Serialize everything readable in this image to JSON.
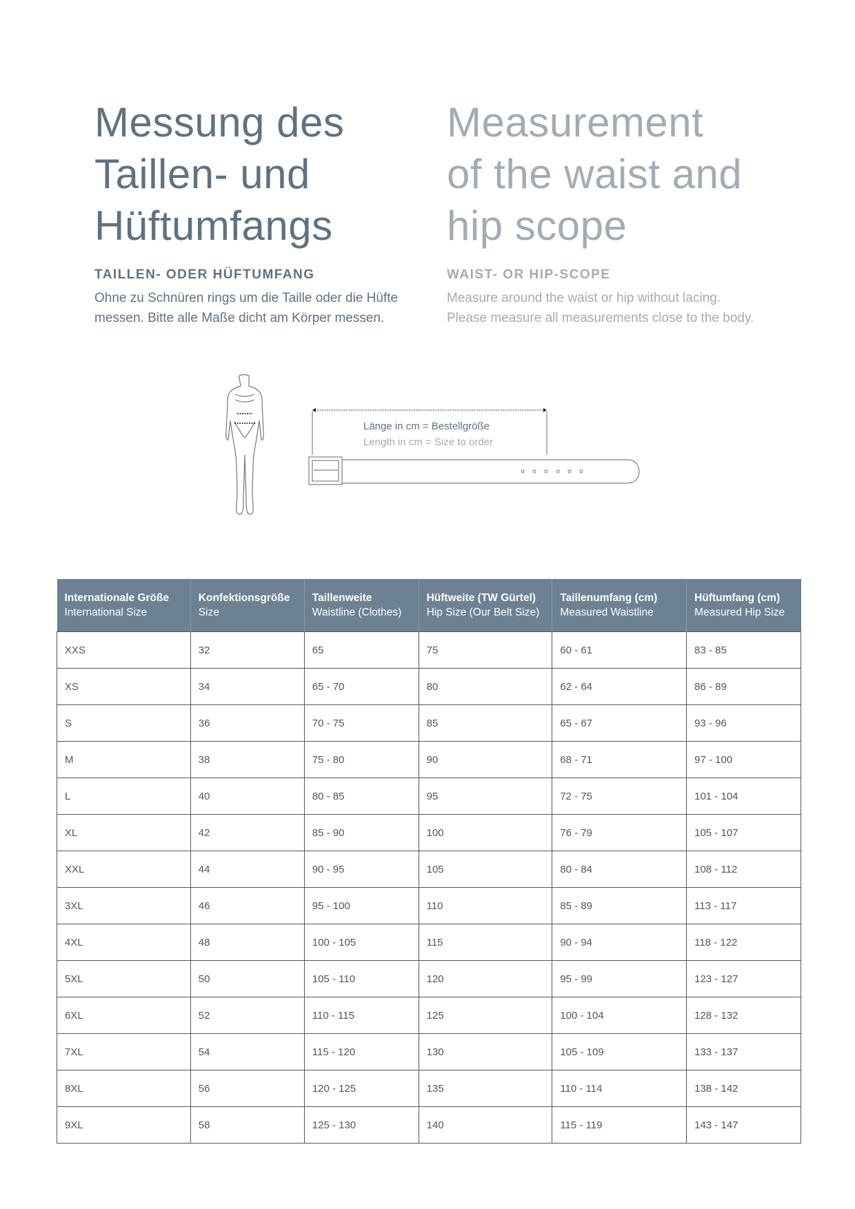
{
  "heading_de": {
    "lines": [
      "Messung des",
      "Taillen- und",
      "Hüftumfangs"
    ]
  },
  "heading_en": {
    "lines": [
      "Measurement",
      "of the waist and",
      "hip scope"
    ]
  },
  "subheading_de": "TAILLEN- ODER HÜFTUMFANG",
  "subheading_en": "WAIST- OR HIP-SCOPE",
  "body_de": [
    "Ohne zu Schnüren rings um die Taille oder die Hüfte",
    "messen. Bitte alle Maße dicht am Körper messen."
  ],
  "body_en": [
    "Measure around the waist or hip without lacing.",
    "Please measure all measurements close to the body."
  ],
  "belt_label_de": "Länge in cm = Bestellgröße",
  "belt_label_en": "Length in cm = Size to order",
  "colors": {
    "header_bg": "#6c8192",
    "heading_de": "#5f7284",
    "heading_en": "#a3acb4"
  },
  "table": {
    "headers": [
      {
        "de": "Internationale Größe",
        "en": "International Size"
      },
      {
        "de": "Konfektionsgröße",
        "en": "Size"
      },
      {
        "de": "Taillenweite",
        "en": "Waistline (Clothes)"
      },
      {
        "de": "Hüftweite (TW Gürtel)",
        "en": "Hip Size (Our Belt Size)"
      },
      {
        "de": "Taillenumfang (cm)",
        "en": "Measured Waistline"
      },
      {
        "de": "Hüftumfang (cm)",
        "en": "Measured Hip Size"
      }
    ],
    "rows": [
      [
        "XXS",
        "32",
        "65",
        "75",
        "60 - 61",
        "83 - 85"
      ],
      [
        "XS",
        "34",
        "65 - 70",
        "80",
        "62 - 64",
        "86 - 89"
      ],
      [
        "S",
        "36",
        "70 - 75",
        "85",
        "65 - 67",
        "93 - 96"
      ],
      [
        "M",
        "38",
        "75 - 80",
        "90",
        "68 - 71",
        "97 - 100"
      ],
      [
        "L",
        "40",
        "80 - 85",
        "95",
        "72 - 75",
        "101 - 104"
      ],
      [
        "XL",
        "42",
        "85 - 90",
        "100",
        "76 - 79",
        "105 - 107"
      ],
      [
        "XXL",
        "44",
        "90 - 95",
        "105",
        "80 - 84",
        "108 - 112"
      ],
      [
        "3XL",
        "46",
        "95 - 100",
        "110",
        "85 - 89",
        "113 - 117"
      ],
      [
        "4XL",
        "48",
        "100 - 105",
        "115",
        "90 - 94",
        "118 - 122"
      ],
      [
        "5XL",
        "50",
        "105 - 110",
        "120",
        "95 - 99",
        "123 - 127"
      ],
      [
        "6XL",
        "52",
        "110 - 115",
        "125",
        "100 - 104",
        "128 - 132"
      ],
      [
        "7XL",
        "54",
        "115 - 120",
        "130",
        "105 - 109",
        "133 - 137"
      ],
      [
        "8XL",
        "56",
        "120 - 125",
        "135",
        "110 - 114",
        "138 - 142"
      ],
      [
        "9XL",
        "58",
        "125 - 130",
        "140",
        "115 - 119",
        "143 - 147"
      ]
    ]
  }
}
